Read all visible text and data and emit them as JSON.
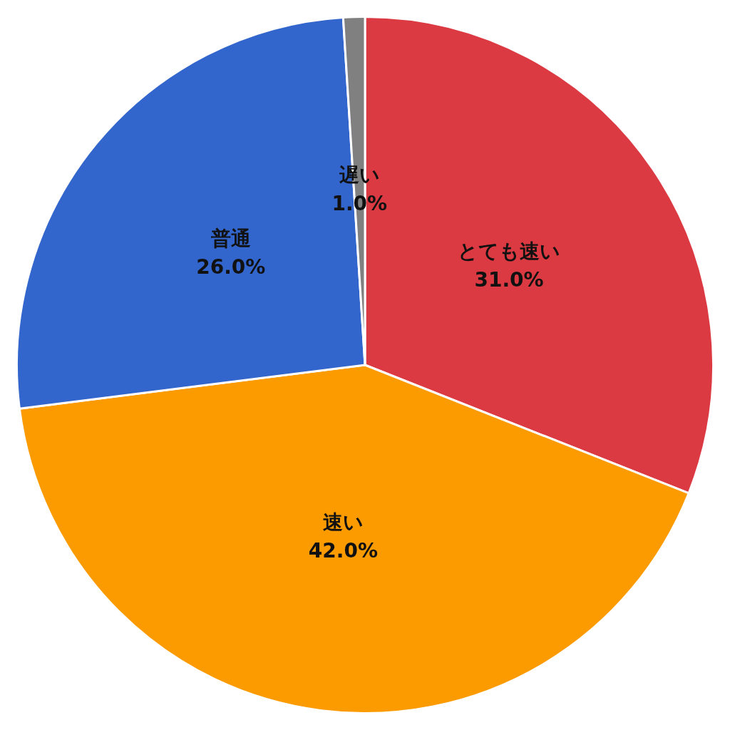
{
  "chart_data": {
    "type": "pie",
    "categories": [
      "とても速い",
      "速い",
      "普通",
      "遅い"
    ],
    "values": [
      31,
      42,
      26,
      1
    ],
    "colors": [
      "#dc3a42",
      "#fb9b00",
      "#3366cc",
      "#808080"
    ],
    "value_labels": [
      "31.0%",
      "42.0%",
      "26.0%",
      "1.0%"
    ],
    "legend": false
  }
}
